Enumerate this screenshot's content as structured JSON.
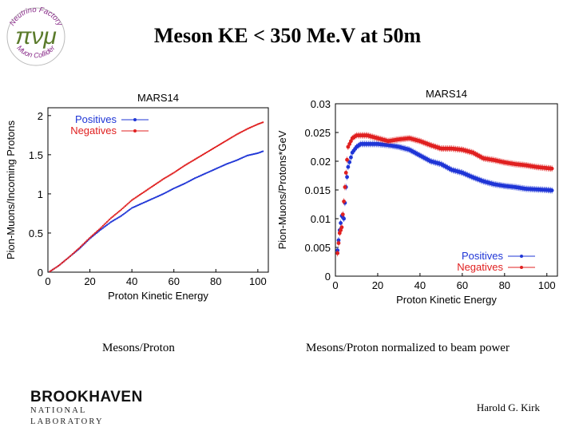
{
  "title": "Meson KE < 350 Me.V at 50m",
  "logo": {
    "top_text": "Neutrino Factory",
    "bottom_text": "Muon Collider",
    "symbols": "πνμ"
  },
  "colors": {
    "positives": "#1f35d6",
    "negatives": "#e02020"
  },
  "chart_data": [
    {
      "type": "scatter",
      "title": "MARS14",
      "xlabel": "Proton Kinetic Energy",
      "ylabel": "Pion-Muons/Incoming Protons",
      "xlim": [
        0,
        105
      ],
      "ylim": [
        0,
        2.1
      ],
      "xticks": [
        "0",
        "20",
        "40",
        "60",
        "80",
        "100"
      ],
      "yticks": [
        "0",
        "0.5",
        "1",
        "1.5",
        "2"
      ],
      "ytick_values": [
        0,
        0.5,
        1,
        1.5,
        2
      ],
      "legend": [
        "Positives",
        "Negatives"
      ],
      "legend_position": "top-left",
      "series": [
        {
          "name": "Positives",
          "x": [
            1,
            5,
            10,
            15,
            20,
            25,
            30,
            35,
            40,
            45,
            50,
            55,
            60,
            65,
            70,
            75,
            80,
            85,
            90,
            95,
            100,
            103
          ],
          "y": [
            0.01,
            0.08,
            0.19,
            0.3,
            0.43,
            0.54,
            0.64,
            0.72,
            0.82,
            0.88,
            0.94,
            1.0,
            1.07,
            1.13,
            1.2,
            1.26,
            1.32,
            1.38,
            1.43,
            1.49,
            1.52,
            1.55
          ]
        },
        {
          "name": "Negatives",
          "x": [
            1,
            5,
            10,
            15,
            20,
            25,
            30,
            35,
            40,
            45,
            50,
            55,
            60,
            65,
            70,
            75,
            80,
            85,
            90,
            95,
            100,
            103
          ],
          "y": [
            0.01,
            0.08,
            0.19,
            0.31,
            0.44,
            0.56,
            0.69,
            0.8,
            0.92,
            1.01,
            1.1,
            1.19,
            1.27,
            1.36,
            1.44,
            1.52,
            1.6,
            1.68,
            1.76,
            1.83,
            1.89,
            1.92
          ]
        }
      ]
    },
    {
      "type": "scatter",
      "title": "MARS14",
      "xlabel": "Proton Kinetic Energy",
      "ylabel": "Pion-Muons/Protons*GeV",
      "xlim": [
        0,
        105
      ],
      "ylim": [
        0,
        0.03
      ],
      "xticks": [
        "0",
        "20",
        "40",
        "60",
        "80",
        "100"
      ],
      "yticks": [
        "0",
        "0.005",
        "0.01",
        "0.015",
        "0.02",
        "0.025",
        "0.03"
      ],
      "ytick_values": [
        0,
        0.005,
        0.01,
        0.015,
        0.02,
        0.025,
        0.03
      ],
      "legend": [
        "Positives",
        "Negatives"
      ],
      "legend_position": "bottom-right",
      "series": [
        {
          "name": "Positives",
          "x": [
            1,
            2,
            3,
            4,
            5,
            6,
            8,
            10,
            12,
            15,
            20,
            25,
            30,
            35,
            40,
            45,
            50,
            55,
            60,
            65,
            70,
            75,
            80,
            85,
            90,
            95,
            100,
            103
          ],
          "y": [
            0.0045,
            0.008,
            0.0105,
            0.01,
            0.0155,
            0.019,
            0.0215,
            0.0225,
            0.023,
            0.023,
            0.023,
            0.0228,
            0.0225,
            0.022,
            0.021,
            0.02,
            0.0195,
            0.0185,
            0.018,
            0.0172,
            0.0165,
            0.016,
            0.0157,
            0.0155,
            0.0152,
            0.0151,
            0.015,
            0.0149
          ]
        },
        {
          "name": "Negatives",
          "x": [
            1,
            2,
            3,
            4,
            5,
            6,
            8,
            10,
            12,
            15,
            20,
            25,
            30,
            35,
            40,
            45,
            50,
            55,
            60,
            65,
            70,
            75,
            80,
            85,
            90,
            95,
            100,
            103
          ],
          "y": [
            0.004,
            0.0075,
            0.0085,
            0.013,
            0.018,
            0.0225,
            0.024,
            0.0245,
            0.0245,
            0.0245,
            0.024,
            0.0235,
            0.0238,
            0.024,
            0.0235,
            0.0228,
            0.0222,
            0.0222,
            0.022,
            0.0215,
            0.0205,
            0.0202,
            0.0198,
            0.0195,
            0.0193,
            0.019,
            0.0188,
            0.0187
          ]
        }
      ]
    }
  ],
  "captions": {
    "left": "Mesons/Proton",
    "right": "Mesons/Proton normalized to beam power"
  },
  "footer": {
    "institution": "BROOKHAVEN",
    "institution_sub": "NATIONAL LABORATORY",
    "author": "Harold G. Kirk"
  }
}
